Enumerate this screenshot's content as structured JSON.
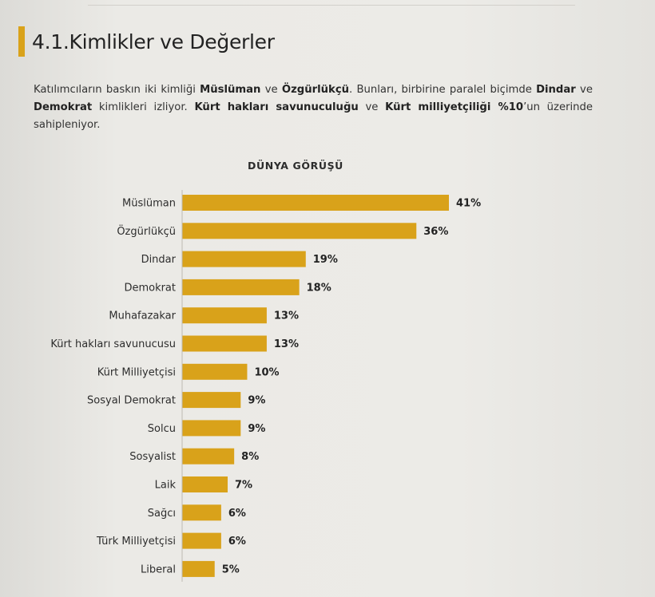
{
  "page": {
    "section_title": "4.1.Kimlikler ve Değerler",
    "intro": [
      {
        "text": "Katılımcıların baskın iki kimliği ",
        "bold": false
      },
      {
        "text": "Müslüman",
        "bold": true
      },
      {
        "text": " ve ",
        "bold": false
      },
      {
        "text": "Özgürlükçü",
        "bold": true
      },
      {
        "text": ". Bunları, birbirine paralel biçimde ",
        "bold": false
      },
      {
        "text": "Dindar",
        "bold": true
      },
      {
        "text": " ve ",
        "bold": false
      },
      {
        "text": "Demokrat",
        "bold": true
      },
      {
        "text": " kimlikleri izliyor. ",
        "bold": false
      },
      {
        "text": "Kürt hakları savunuculuğu",
        "bold": true
      },
      {
        "text": " ve ",
        "bold": false
      },
      {
        "text": "Kürt milliyetçiliği %10",
        "bold": true
      },
      {
        "text": "’un üzerinde sahipleniyor.",
        "bold": false
      }
    ]
  },
  "colors": {
    "accent": "#d9a21a"
  },
  "chart_data": {
    "type": "bar",
    "orientation": "horizontal",
    "title": "DÜNYA GÖRÜŞÜ",
    "xlabel": "",
    "ylabel": "",
    "xlim": [
      0,
      41
    ],
    "categories": [
      "Müslüman",
      "Özgürlükçü",
      "Dindar",
      "Demokrat",
      "Muhafazakar",
      "Kürt hakları savunucusu",
      "Kürt Milliyetçisi",
      "Sosyal Demokrat",
      "Solcu",
      "Sosyalist",
      "Laik",
      "Sağcı",
      "Türk Milliyetçisi",
      "Liberal"
    ],
    "values": [
      41,
      36,
      19,
      18,
      13,
      13,
      10,
      9,
      9,
      8,
      7,
      6,
      6,
      5
    ],
    "value_labels": [
      "41%",
      "36%",
      "19%",
      "18%",
      "13%",
      "13%",
      "10%",
      "9%",
      "9%",
      "8%",
      "7%",
      "6%",
      "6%",
      "5%"
    ]
  }
}
